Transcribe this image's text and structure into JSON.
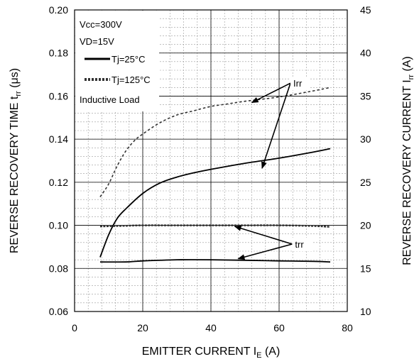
{
  "chart_data": {
    "type": "line",
    "title": "",
    "xlabel": {
      "main": "EMITTER CURRENT I",
      "sub": "E",
      "unit": " (A)"
    },
    "ylabel": {
      "main": "REVERSE RECOVERY TIME t",
      "sub": "rr",
      "unit": " (μs)"
    },
    "y2label": {
      "main": "REVERSE RECOVERY CURRENT I",
      "sub": "rr",
      "unit": " (A)"
    },
    "xlim": [
      0,
      80
    ],
    "ylim": [
      0.06,
      0.2
    ],
    "y2lim": [
      10,
      45
    ],
    "x_ticks": [
      0,
      20,
      40,
      60,
      80
    ],
    "y_ticks": [
      0.06,
      0.08,
      0.1,
      0.12,
      0.14,
      0.16,
      0.18,
      0.2
    ],
    "y2_ticks": [
      10,
      15,
      20,
      25,
      30,
      35,
      40,
      45
    ],
    "x_tick_labels": [
      "0",
      "20",
      "40",
      "60",
      "80"
    ],
    "y_tick_labels": [
      "0.06",
      "0.08",
      "0.10",
      "0.12",
      "0.14",
      "0.16",
      "0.18",
      "0.20"
    ],
    "y2_tick_labels": [
      "10",
      "15",
      "20",
      "25",
      "30",
      "35",
      "40",
      "45"
    ],
    "grid": true,
    "legend": {
      "placement": "top-left",
      "conditions": [
        "Vcc=300V",
        "VD=15V"
      ],
      "entries": [
        {
          "label": "Tj=25°C",
          "style": "solid"
        },
        {
          "label": "Tj=125°C",
          "style": "dotted"
        }
      ],
      "note": "Inductive Load"
    },
    "series": [
      {
        "name": "Tj=25°C",
        "quantity": "Irr",
        "axis": "right",
        "style": "solid",
        "x": [
          7.5,
          10,
          12.5,
          15,
          20,
          25,
          30,
          35,
          40,
          50,
          60,
          70,
          75
        ],
        "values": [
          16.3,
          18.9,
          20.8,
          21.9,
          23.7,
          24.9,
          25.6,
          26.1,
          26.5,
          27.2,
          27.8,
          28.5,
          28.9
        ]
      },
      {
        "name": "Tj=125°C",
        "quantity": "Irr",
        "axis": "right",
        "style": "dotted",
        "x": [
          7.5,
          10,
          12.5,
          15,
          17.5,
          20,
          25,
          30,
          35,
          40,
          45,
          50,
          60,
          70,
          75
        ],
        "values": [
          23.3,
          24.8,
          26.9,
          28.6,
          29.8,
          30.6,
          31.9,
          32.8,
          33.3,
          33.8,
          34.1,
          34.4,
          34.9,
          35.6,
          36.0
        ]
      },
      {
        "name": "Tj=25°C",
        "quantity": "trr",
        "axis": "left",
        "style": "solid",
        "x": [
          7.5,
          15,
          20,
          30,
          40,
          50,
          60,
          70,
          75
        ],
        "values": [
          0.083,
          0.083,
          0.0835,
          0.084,
          0.084,
          0.0838,
          0.0835,
          0.0833,
          0.083
        ]
      },
      {
        "name": "Tj=125°C",
        "quantity": "trr",
        "axis": "left",
        "style": "dotted",
        "x": [
          7.5,
          15,
          20,
          30,
          40,
          50,
          60,
          70,
          75
        ],
        "values": [
          0.0995,
          0.0998,
          0.1,
          0.1,
          0.1,
          0.1,
          0.1,
          0.0997,
          0.0993
        ]
      }
    ],
    "annotations": [
      {
        "text": "Irr",
        "arrows_to": [
          [
            52,
            0.157
          ],
          [
            55,
            0.1265
          ]
        ]
      },
      {
        "text": "trr",
        "arrows_to": [
          [
            47,
            0.0995
          ],
          [
            48,
            0.0845
          ]
        ]
      }
    ]
  }
}
